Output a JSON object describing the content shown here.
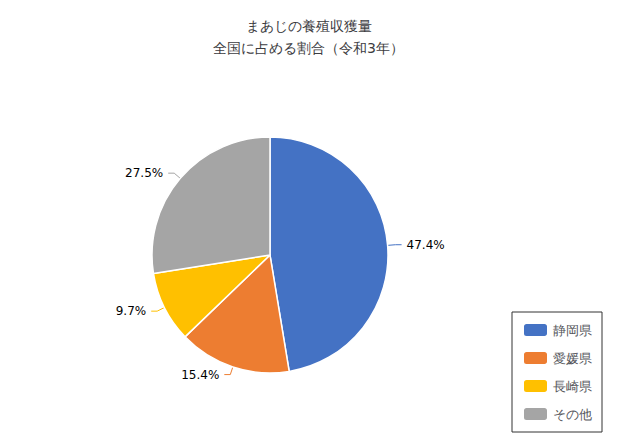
{
  "chart_data": {
    "type": "pie",
    "title": "まあじの養殖収獲量\n全国に占める割合（令和3年）",
    "categories": [
      "静岡県",
      "愛媛県",
      "長崎県",
      "その他"
    ],
    "values": [
      47.4,
      15.4,
      9.7,
      27.5
    ],
    "value_labels": [
      "47.4%",
      "15.4%",
      "9.7%",
      "27.5%"
    ],
    "colors": [
      "#4472C4",
      "#ED7D31",
      "#FFC000",
      "#A5A5A5"
    ],
    "data_labels": true,
    "legend": "lower right"
  }
}
